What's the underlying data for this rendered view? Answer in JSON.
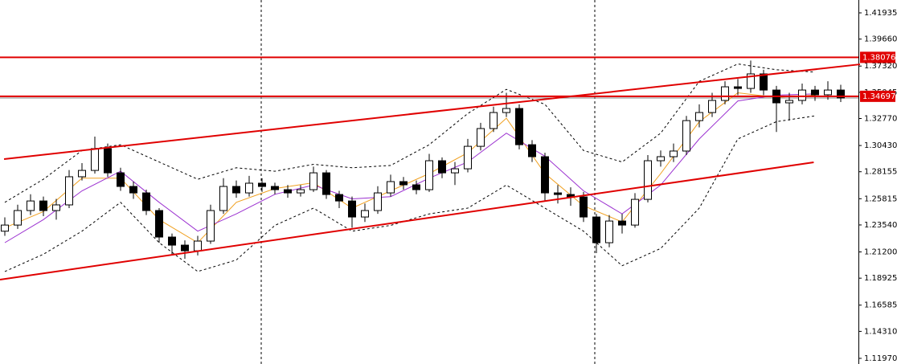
{
  "chart_data": {
    "type": "candlestick",
    "xlim": [
      -0.375,
      66.375
    ],
    "ylim": [
      1.1148,
      1.4305
    ],
    "yticks": [
      {
        "value": 1.41935,
        "label": "1.41935"
      },
      {
        "value": 1.3966,
        "label": "1.39660"
      },
      {
        "value": 1.3732,
        "label": "1.37320"
      },
      {
        "value": 1.35045,
        "label": "1.35045"
      },
      {
        "value": 1.3277,
        "label": "1.32770"
      },
      {
        "value": 1.3043,
        "label": "1.30430"
      },
      {
        "value": 1.28155,
        "label": "1.28155"
      },
      {
        "value": 1.25815,
        "label": "1.25815"
      },
      {
        "value": 1.2354,
        "label": "1.23540"
      },
      {
        "value": 1.212,
        "label": "1.21200"
      },
      {
        "value": 1.18925,
        "label": "1.18925"
      },
      {
        "value": 1.16585,
        "label": "1.16585"
      },
      {
        "value": 1.1431,
        "label": "1.14310"
      },
      {
        "value": 1.1197,
        "label": "1.11970"
      }
    ],
    "up_color": "#ffffff",
    "down_color": "#000000",
    "open": [
      1.23,
      1.2353,
      1.2479,
      1.2562,
      1.2479,
      1.2528,
      1.2772,
      1.2827,
      1.3016,
      1.2806,
      1.2688,
      1.2632,
      1.2479,
      1.2249,
      1.2179,
      1.213,
      1.2214,
      1.2479,
      1.2688,
      1.2632,
      1.2716,
      1.2688,
      1.266,
      1.2632,
      1.266,
      1.2806,
      1.2618,
      1.2562,
      1.2423,
      1.2479,
      1.2632,
      1.273,
      1.2702,
      1.266,
      1.2911,
      1.2806,
      1.2841,
      1.3036,
      1.319,
      1.3329,
      1.3364,
      1.305,
      1.2946,
      1.2632,
      1.2618,
      1.2597,
      1.2423,
      1.22,
      1.2388,
      1.2353,
      1.2576,
      1.2911,
      1.2946,
      1.2995,
      1.3259,
      1.3329,
      1.3434,
      1.3552,
      1.3538,
      1.3664,
      1.3524,
      1.3413,
      1.3434,
      1.3524,
      1.3483,
      1.3524
    ],
    "high": [
      1.242,
      1.253,
      1.262,
      1.26,
      1.258,
      1.283,
      1.289,
      1.312,
      1.306,
      1.285,
      1.273,
      1.266,
      1.25,
      1.228,
      1.222,
      1.226,
      1.253,
      1.276,
      1.274,
      1.278,
      1.276,
      1.272,
      1.27,
      1.27,
      1.286,
      1.283,
      1.265,
      1.26,
      1.254,
      1.269,
      1.279,
      1.277,
      1.274,
      1.297,
      1.294,
      1.29,
      1.31,
      1.324,
      1.338,
      1.35,
      1.34,
      1.309,
      1.298,
      1.27,
      1.268,
      1.264,
      1.245,
      1.244,
      1.245,
      1.263,
      1.296,
      1.3,
      1.306,
      1.33,
      1.34,
      1.35,
      1.36,
      1.362,
      1.378,
      1.37,
      1.356,
      1.35,
      1.358,
      1.356,
      1.36,
      1.357
    ],
    "low": [
      1.226,
      1.232,
      1.244,
      1.243,
      1.24,
      1.25,
      1.274,
      1.28,
      1.277,
      1.265,
      1.258,
      1.244,
      1.22,
      1.21,
      1.206,
      1.209,
      1.219,
      1.245,
      1.259,
      1.26,
      1.264,
      1.262,
      1.259,
      1.26,
      1.264,
      1.258,
      1.25,
      1.233,
      1.238,
      1.245,
      1.26,
      1.266,
      1.262,
      1.264,
      1.276,
      1.27,
      1.281,
      1.3,
      1.316,
      1.329,
      1.301,
      1.29,
      1.256,
      1.254,
      1.252,
      1.238,
      1.211,
      1.216,
      1.228,
      1.233,
      1.255,
      1.286,
      1.29,
      1.296,
      1.32,
      1.329,
      1.34,
      1.348,
      1.35,
      1.348,
      1.316,
      1.326,
      1.34,
      1.343,
      1.344,
      1.342
    ],
    "close": [
      1.2353,
      1.2479,
      1.2562,
      1.2479,
      1.2528,
      1.2772,
      1.2827,
      1.3016,
      1.2806,
      1.2688,
      1.2632,
      1.2479,
      1.2249,
      1.2179,
      1.213,
      1.2214,
      1.2479,
      1.2688,
      1.2632,
      1.2716,
      1.2688,
      1.266,
      1.2632,
      1.266,
      1.2806,
      1.2618,
      1.2562,
      1.2423,
      1.2479,
      1.2632,
      1.273,
      1.2702,
      1.266,
      1.2911,
      1.2806,
      1.2841,
      1.3036,
      1.319,
      1.3329,
      1.3364,
      1.305,
      1.2946,
      1.2632,
      1.2618,
      1.2597,
      1.2423,
      1.22,
      1.2388,
      1.2353,
      1.2576,
      1.2911,
      1.2946,
      1.2995,
      1.3259,
      1.3329,
      1.3434,
      1.3552,
      1.3538,
      1.3664,
      1.3524,
      1.3413,
      1.3434,
      1.3524,
      1.3483,
      1.3524,
      1.3455
    ],
    "indicators": [
      {
        "color": "#f0a020",
        "dashed": false,
        "x": [
          0,
          3,
          6,
          9,
          12,
          15,
          18,
          21,
          24,
          27,
          30,
          33,
          36,
          39,
          42,
          45,
          48,
          51,
          54,
          57,
          60,
          63
        ],
        "values": [
          1.233,
          1.247,
          1.276,
          1.276,
          1.24,
          1.22,
          1.255,
          1.267,
          1.272,
          1.25,
          1.265,
          1.28,
          1.298,
          1.328,
          1.28,
          1.252,
          1.238,
          1.28,
          1.325,
          1.35,
          1.346,
          1.348
        ]
      },
      {
        "color": "#9b30d0",
        "dashed": false,
        "x": [
          0,
          3,
          6,
          9,
          12,
          15,
          18,
          21,
          24,
          27,
          30,
          33,
          36,
          39,
          42,
          45,
          48,
          51,
          54,
          57,
          60,
          63
        ],
        "values": [
          1.22,
          1.24,
          1.265,
          1.282,
          1.255,
          1.23,
          1.245,
          1.262,
          1.27,
          1.258,
          1.26,
          1.276,
          1.29,
          1.315,
          1.295,
          1.265,
          1.245,
          1.27,
          1.31,
          1.343,
          1.348,
          1.349
        ]
      },
      {
        "color": "#000000",
        "dashed": true,
        "x": [
          0,
          3,
          6,
          9,
          12,
          15,
          18,
          21,
          24,
          27,
          30,
          33,
          36,
          39,
          42,
          45,
          48,
          51,
          54,
          57,
          60,
          63
        ],
        "values": [
          1.255,
          1.275,
          1.3,
          1.305,
          1.29,
          1.275,
          1.285,
          1.282,
          1.288,
          1.285,
          1.287,
          1.305,
          1.332,
          1.353,
          1.34,
          1.3,
          1.29,
          1.315,
          1.36,
          1.375,
          1.37,
          1.368
        ]
      },
      {
        "color": "#000000",
        "dashed": true,
        "x": [
          0,
          3,
          6,
          9,
          12,
          15,
          18,
          21,
          24,
          27,
          30,
          33,
          36,
          39,
          42,
          45,
          48,
          51,
          54,
          57,
          60,
          63
        ],
        "values": [
          1.195,
          1.21,
          1.23,
          1.255,
          1.22,
          1.195,
          1.205,
          1.235,
          1.25,
          1.23,
          1.235,
          1.245,
          1.25,
          1.27,
          1.25,
          1.23,
          1.2,
          1.215,
          1.25,
          1.31,
          1.325,
          1.33
        ]
      }
    ],
    "trendlines": [
      {
        "color": "#e00000",
        "x": [
          -0.06,
          66.5
        ],
        "y": [
          1.2925,
          1.3747
        ]
      },
      {
        "color": "#e00000",
        "x": [
          -0.375,
          62.9
        ],
        "y": [
          1.188,
          1.2897
        ]
      }
    ],
    "bid_line": 1.3455,
    "hlines": [
      {
        "color": "#e00000",
        "value": 1.38076
      },
      {
        "color": "#e00000",
        "value": 1.34697
      }
    ]
  }
}
